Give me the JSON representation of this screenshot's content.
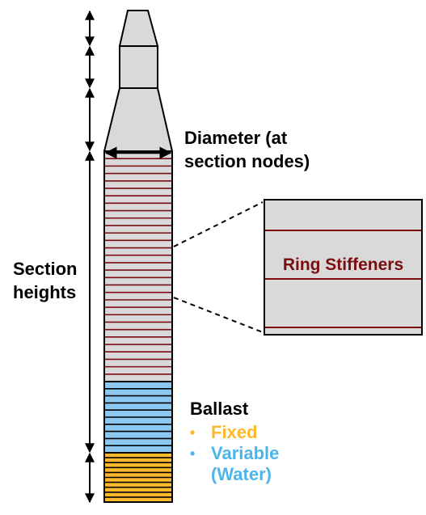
{
  "labels": {
    "diameter_line1": "Diameter (at",
    "diameter_line2": "section nodes)",
    "section_line1": "Section",
    "section_line2": "heights",
    "ring_stiffeners": "Ring Stiffeners",
    "ballast_title": "Ballast",
    "ballast_fixed": "Fixed",
    "ballast_variable_line1": "Variable",
    "ballast_variable_line2": "(Water)"
  },
  "colors": {
    "hull_fill": "#D9D9D9",
    "stiffener": "#7B0C10",
    "fixed_ballast": "#FDB92C",
    "variable_ballast": "#8DC8F1",
    "variable_text": "#4BB5EA",
    "outline": "#000000"
  },
  "diagram": {
    "stiffener_ring_count": 31,
    "variable_ballast_band_count": 10,
    "fixed_ballast_band_count": 10
  }
}
